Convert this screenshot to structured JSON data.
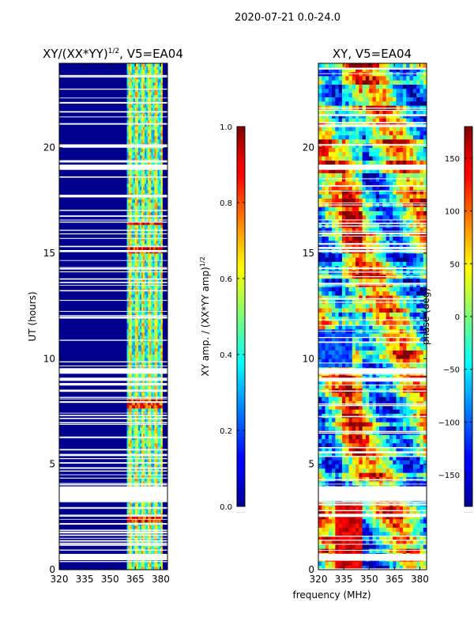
{
  "figure": {
    "suptitle": "2020-07-21 0.0-24.0",
    "shared_xlabel": "frequency (MHz)"
  },
  "chart_data": [
    {
      "type": "heatmap",
      "title_main": "XY/(XX*YY)",
      "title_sup": "1/2",
      "title_tail": ", V5=EA04",
      "ylabel": "UT (hours)",
      "xlim": [
        320,
        384
      ],
      "ylim": [
        0,
        24
      ],
      "xticks": [
        "320",
        "335",
        "350",
        "365",
        "380"
      ],
      "xtick_values": [
        320,
        335,
        350,
        365,
        380
      ],
      "yticks": [
        "0",
        "5",
        "10",
        "15",
        "20"
      ],
      "ytick_values": [
        0,
        5,
        10,
        15,
        20
      ],
      "background_color": "#00008f",
      "active_band_mhz": [
        360,
        381
      ],
      "gaps_hours": [
        [
          0.45,
          0.75
        ],
        [
          3.25,
          3.95
        ],
        [
          8.95,
          9.1
        ],
        [
          9.3,
          9.55
        ],
        [
          15.05,
          15.15
        ],
        [
          18.95,
          19.2
        ],
        [
          20.0,
          20.1
        ]
      ],
      "colorbar": {
        "label_main": "XY amp. / (XX*YY amp)",
        "label_sup": "1/2",
        "range": [
          0.0,
          1.0
        ],
        "ticks": [
          "0.0",
          "0.2",
          "0.4",
          "0.6",
          "0.8",
          "1.0"
        ],
        "tick_values": [
          0.0,
          0.2,
          0.4,
          0.6,
          0.8,
          1.0
        ],
        "unit_note": "......"
      }
    },
    {
      "type": "heatmap",
      "title_main": "XY, V5=EA04",
      "ylabel": "",
      "xlim": [
        320,
        384
      ],
      "ylim": [
        0,
        24
      ],
      "xticks": [
        "320",
        "335",
        "350",
        "365",
        "380"
      ],
      "xtick_values": [
        320,
        335,
        350,
        365,
        380
      ],
      "yticks": [
        "0",
        "5",
        "10",
        "15",
        "20"
      ],
      "ytick_values": [
        0,
        5,
        10,
        15,
        20
      ],
      "gaps_hours": [
        [
          0.45,
          0.75
        ],
        [
          2.5,
          2.65
        ],
        [
          3.25,
          3.95
        ],
        [
          8.95,
          9.1
        ],
        [
          9.3,
          9.55
        ],
        [
          15.05,
          15.15
        ],
        [
          18.95,
          19.2
        ]
      ],
      "colorbar": {
        "label_main": "phase (deg)",
        "range": [
          -180,
          180
        ],
        "ticks": [
          "−150",
          "−100",
          "−50",
          "0",
          "50",
          "100",
          "150"
        ],
        "tick_values": [
          -150,
          -100,
          -50,
          0,
          50,
          100,
          150
        ],
        "unit_note": "......"
      }
    }
  ]
}
